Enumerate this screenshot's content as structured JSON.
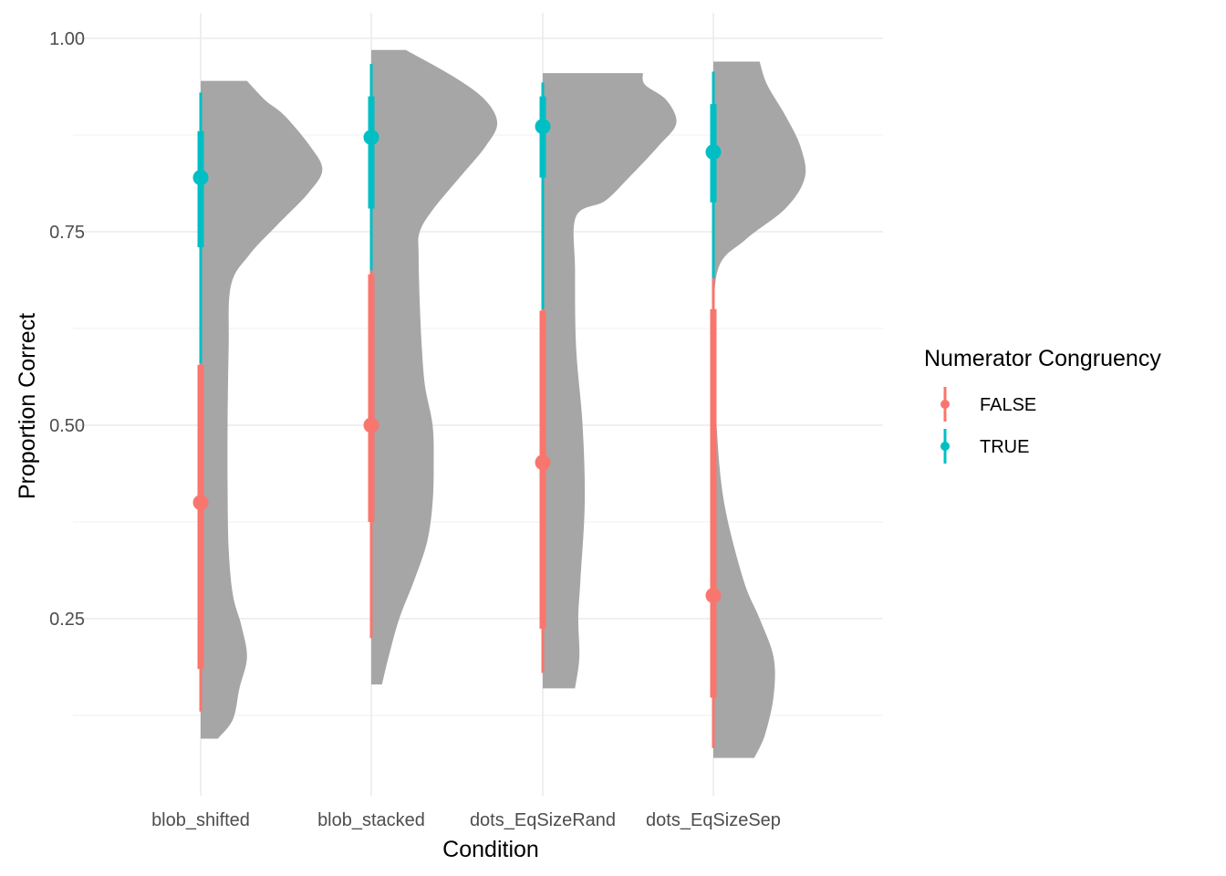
{
  "chart_data": {
    "type": "violin",
    "title": "",
    "xlabel": "Condition",
    "ylabel": "Proportion Correct",
    "ylim": [
      0.05,
      1.03
    ],
    "yticks": [
      0.25,
      0.5,
      0.75,
      1.0
    ],
    "ytick_labels": [
      "0.25",
      "0.50",
      "0.75",
      "1.00"
    ],
    "grid": true,
    "categories": [
      "blob_shifted",
      "blob_stacked",
      "dots_EqSizeRand",
      "dots_EqSizeSep"
    ],
    "legend": {
      "title": "Numerator Congruency",
      "placement": "right",
      "entries": [
        {
          "label": "FALSE",
          "color": "#F8766D"
        },
        {
          "label": "TRUE",
          "color": "#00BFC4"
        }
      ]
    },
    "violin_color": "#a6a6a6",
    "violins": [
      {
        "category": "blob_shifted",
        "profile": [
          [
            0.095,
            0.16
          ],
          [
            0.12,
            0.3
          ],
          [
            0.16,
            0.36
          ],
          [
            0.2,
            0.43
          ],
          [
            0.24,
            0.38
          ],
          [
            0.28,
            0.3
          ],
          [
            0.34,
            0.26
          ],
          [
            0.42,
            0.25
          ],
          [
            0.5,
            0.25
          ],
          [
            0.6,
            0.26
          ],
          [
            0.68,
            0.28
          ],
          [
            0.72,
            0.45
          ],
          [
            0.76,
            0.72
          ],
          [
            0.8,
            1.0
          ],
          [
            0.83,
            1.13
          ],
          [
            0.86,
            1.02
          ],
          [
            0.9,
            0.78
          ],
          [
            0.92,
            0.6
          ],
          [
            0.945,
            0.43
          ]
        ]
      },
      {
        "category": "blob_stacked",
        "profile": [
          [
            0.165,
            0.1
          ],
          [
            0.2,
            0.16
          ],
          [
            0.25,
            0.26
          ],
          [
            0.3,
            0.4
          ],
          [
            0.35,
            0.52
          ],
          [
            0.4,
            0.57
          ],
          [
            0.45,
            0.58
          ],
          [
            0.5,
            0.57
          ],
          [
            0.55,
            0.5
          ],
          [
            0.6,
            0.47
          ],
          [
            0.66,
            0.45
          ],
          [
            0.72,
            0.44
          ],
          [
            0.75,
            0.45
          ],
          [
            0.78,
            0.58
          ],
          [
            0.82,
            0.82
          ],
          [
            0.86,
            1.06
          ],
          [
            0.89,
            1.17
          ],
          [
            0.92,
            1.06
          ],
          [
            0.95,
            0.77
          ],
          [
            0.985,
            0.32
          ]
        ]
      },
      {
        "category": "dots_EqSizeRand",
        "profile": [
          [
            0.16,
            0.3
          ],
          [
            0.2,
            0.34
          ],
          [
            0.25,
            0.33
          ],
          [
            0.3,
            0.35
          ],
          [
            0.4,
            0.39
          ],
          [
            0.5,
            0.37
          ],
          [
            0.6,
            0.31
          ],
          [
            0.7,
            0.3
          ],
          [
            0.77,
            0.31
          ],
          [
            0.79,
            0.58
          ],
          [
            0.82,
            0.8
          ],
          [
            0.86,
            1.07
          ],
          [
            0.89,
            1.24
          ],
          [
            0.92,
            1.15
          ],
          [
            0.94,
            0.95
          ],
          [
            0.955,
            0.93
          ]
        ]
      },
      {
        "category": "dots_EqSizeSep",
        "profile": [
          [
            0.07,
            0.38
          ],
          [
            0.1,
            0.48
          ],
          [
            0.15,
            0.56
          ],
          [
            0.2,
            0.56
          ],
          [
            0.25,
            0.43
          ],
          [
            0.3,
            0.28
          ],
          [
            0.4,
            0.1
          ],
          [
            0.5,
            0.03
          ],
          [
            0.6,
            0.01
          ],
          [
            0.7,
            0.04
          ],
          [
            0.74,
            0.3
          ],
          [
            0.78,
            0.67
          ],
          [
            0.82,
            0.85
          ],
          [
            0.86,
            0.81
          ],
          [
            0.9,
            0.67
          ],
          [
            0.94,
            0.5
          ],
          [
            0.97,
            0.43
          ]
        ]
      }
    ],
    "series": [
      {
        "name": "FALSE",
        "color": "#F8766D",
        "points": [
          {
            "category": "blob_shifted",
            "median": 0.4,
            "inner": [
              0.185,
              0.578
            ],
            "outer": [
              0.13,
              0.68
            ]
          },
          {
            "category": "blob_stacked",
            "median": 0.5,
            "inner": [
              0.375,
              0.695
            ],
            "outer": [
              0.225,
              0.7
            ]
          },
          {
            "category": "dots_EqSizeRand",
            "median": 0.452,
            "inner": [
              0.237,
              0.648
            ],
            "outer": [
              0.18,
              0.73
            ]
          },
          {
            "category": "dots_EqSizeSep",
            "median": 0.28,
            "inner": [
              0.148,
              0.65
            ],
            "outer": [
              0.083,
              0.69
            ]
          }
        ]
      },
      {
        "name": "TRUE",
        "color": "#00BFC4",
        "points": [
          {
            "category": "blob_shifted",
            "median": 0.82,
            "inner": [
              0.73,
              0.88
            ],
            "outer": [
              0.58,
              0.93
            ]
          },
          {
            "category": "blob_stacked",
            "median": 0.872,
            "inner": [
              0.78,
              0.925
            ],
            "outer": [
              0.7,
              0.967
            ]
          },
          {
            "category": "dots_EqSizeRand",
            "median": 0.886,
            "inner": [
              0.82,
              0.925
            ],
            "outer": [
              0.65,
              0.943
            ]
          },
          {
            "category": "dots_EqSizeSep",
            "median": 0.853,
            "inner": [
              0.788,
              0.915
            ],
            "outer": [
              0.69,
              0.957
            ]
          }
        ]
      }
    ]
  }
}
